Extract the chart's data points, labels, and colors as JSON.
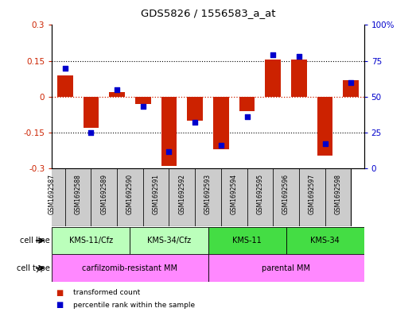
{
  "title": "GDS5826 / 1556583_a_at",
  "samples": [
    "GSM1692587",
    "GSM1692588",
    "GSM1692589",
    "GSM1692590",
    "GSM1692591",
    "GSM1692592",
    "GSM1692593",
    "GSM1692594",
    "GSM1692595",
    "GSM1692596",
    "GSM1692597",
    "GSM1692598"
  ],
  "red_values": [
    0.09,
    -0.13,
    0.02,
    -0.03,
    -0.29,
    -0.1,
    -0.22,
    -0.06,
    0.155,
    0.155,
    -0.245,
    0.07
  ],
  "blue_values_pct": [
    70,
    25,
    55,
    43,
    12,
    32,
    16,
    36,
    79,
    78,
    17,
    60
  ],
  "ylim": [
    -0.3,
    0.3
  ],
  "yticks_left": [
    -0.3,
    -0.15,
    0.0,
    0.15,
    0.3
  ],
  "ytick_left_labels": [
    "-0.3",
    "-0.15",
    "0",
    "0.15",
    "0.3"
  ],
  "yticks_right": [
    0,
    25,
    50,
    75,
    100
  ],
  "ytick_right_labels": [
    "0",
    "25",
    "50",
    "75",
    "100%"
  ],
  "cell_line_groups": [
    {
      "label": "KMS-11/Cfz",
      "start": 0,
      "end": 3,
      "color": "#bbffbb"
    },
    {
      "label": "KMS-34/Cfz",
      "start": 3,
      "end": 6,
      "color": "#bbffbb"
    },
    {
      "label": "KMS-11",
      "start": 6,
      "end": 9,
      "color": "#44dd44"
    },
    {
      "label": "KMS-34",
      "start": 9,
      "end": 12,
      "color": "#44dd44"
    }
  ],
  "cell_type_groups": [
    {
      "label": "carfilzomib-resistant MM",
      "start": 0,
      "end": 6,
      "color": "#ff88ff"
    },
    {
      "label": "parental MM",
      "start": 6,
      "end": 12,
      "color": "#ff88ff"
    }
  ],
  "red_color": "#cc2200",
  "blue_color": "#0000cc",
  "bar_width": 0.6,
  "sample_box_color": "#cccccc",
  "dotted_line_color": "#000000",
  "zero_line_color": "#cc2200",
  "bg_color": "#ffffff"
}
